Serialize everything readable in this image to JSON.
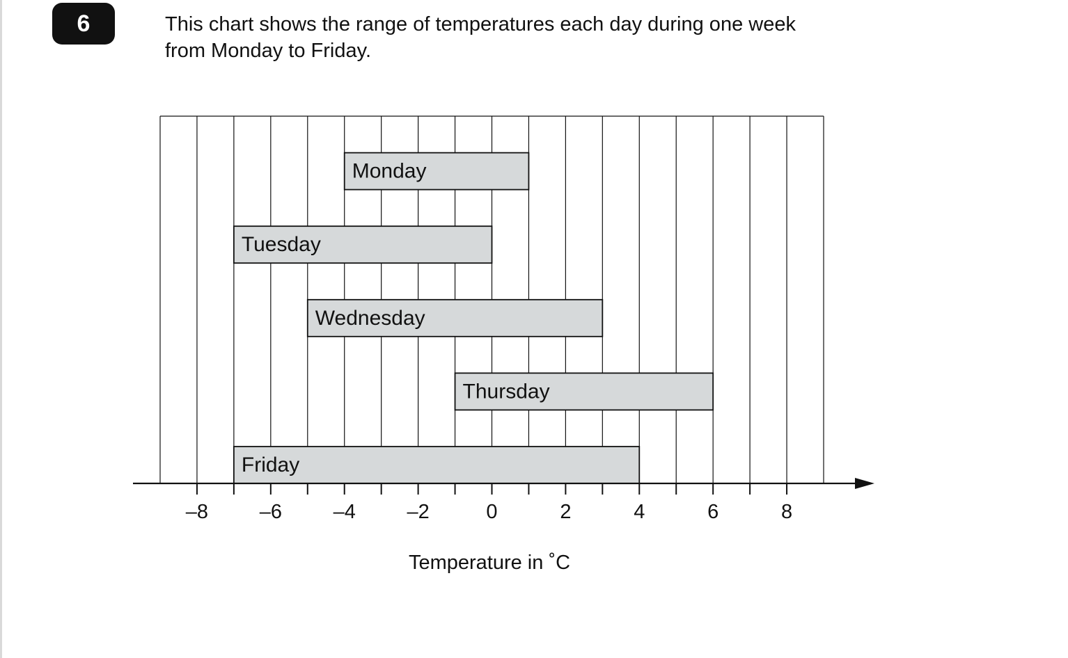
{
  "question": {
    "number": "6",
    "text_line_1": "This chart shows the range of temperatures each day during one week",
    "text_line_2": "from Monday to Friday."
  },
  "chart_data": {
    "type": "bar",
    "orientation": "horizontal-range",
    "categories": [
      "Monday",
      "Tuesday",
      "Wednesday",
      "Thursday",
      "Friday"
    ],
    "ranges": [
      {
        "label": "Monday",
        "min": -4,
        "max": 1
      },
      {
        "label": "Tuesday",
        "min": -7,
        "max": 0
      },
      {
        "label": "Wednesday",
        "min": -5,
        "max": 3
      },
      {
        "label": "Thursday",
        "min": -1,
        "max": 6
      },
      {
        "label": "Friday",
        "min": -7,
        "max": 4
      }
    ],
    "xlabel": "Temperature in ˚C",
    "xlim": [
      -9,
      9
    ],
    "tick_labels": [
      "–8",
      "–6",
      "–4",
      "–2",
      "0",
      "2",
      "4",
      "6",
      "8"
    ],
    "tick_values": [
      -8,
      -6,
      -4,
      -2,
      0,
      2,
      4,
      6,
      8
    ],
    "minor_ticks_every": 1,
    "grid": true,
    "bar_color": "#d6d9da",
    "line_color": "#111111"
  }
}
